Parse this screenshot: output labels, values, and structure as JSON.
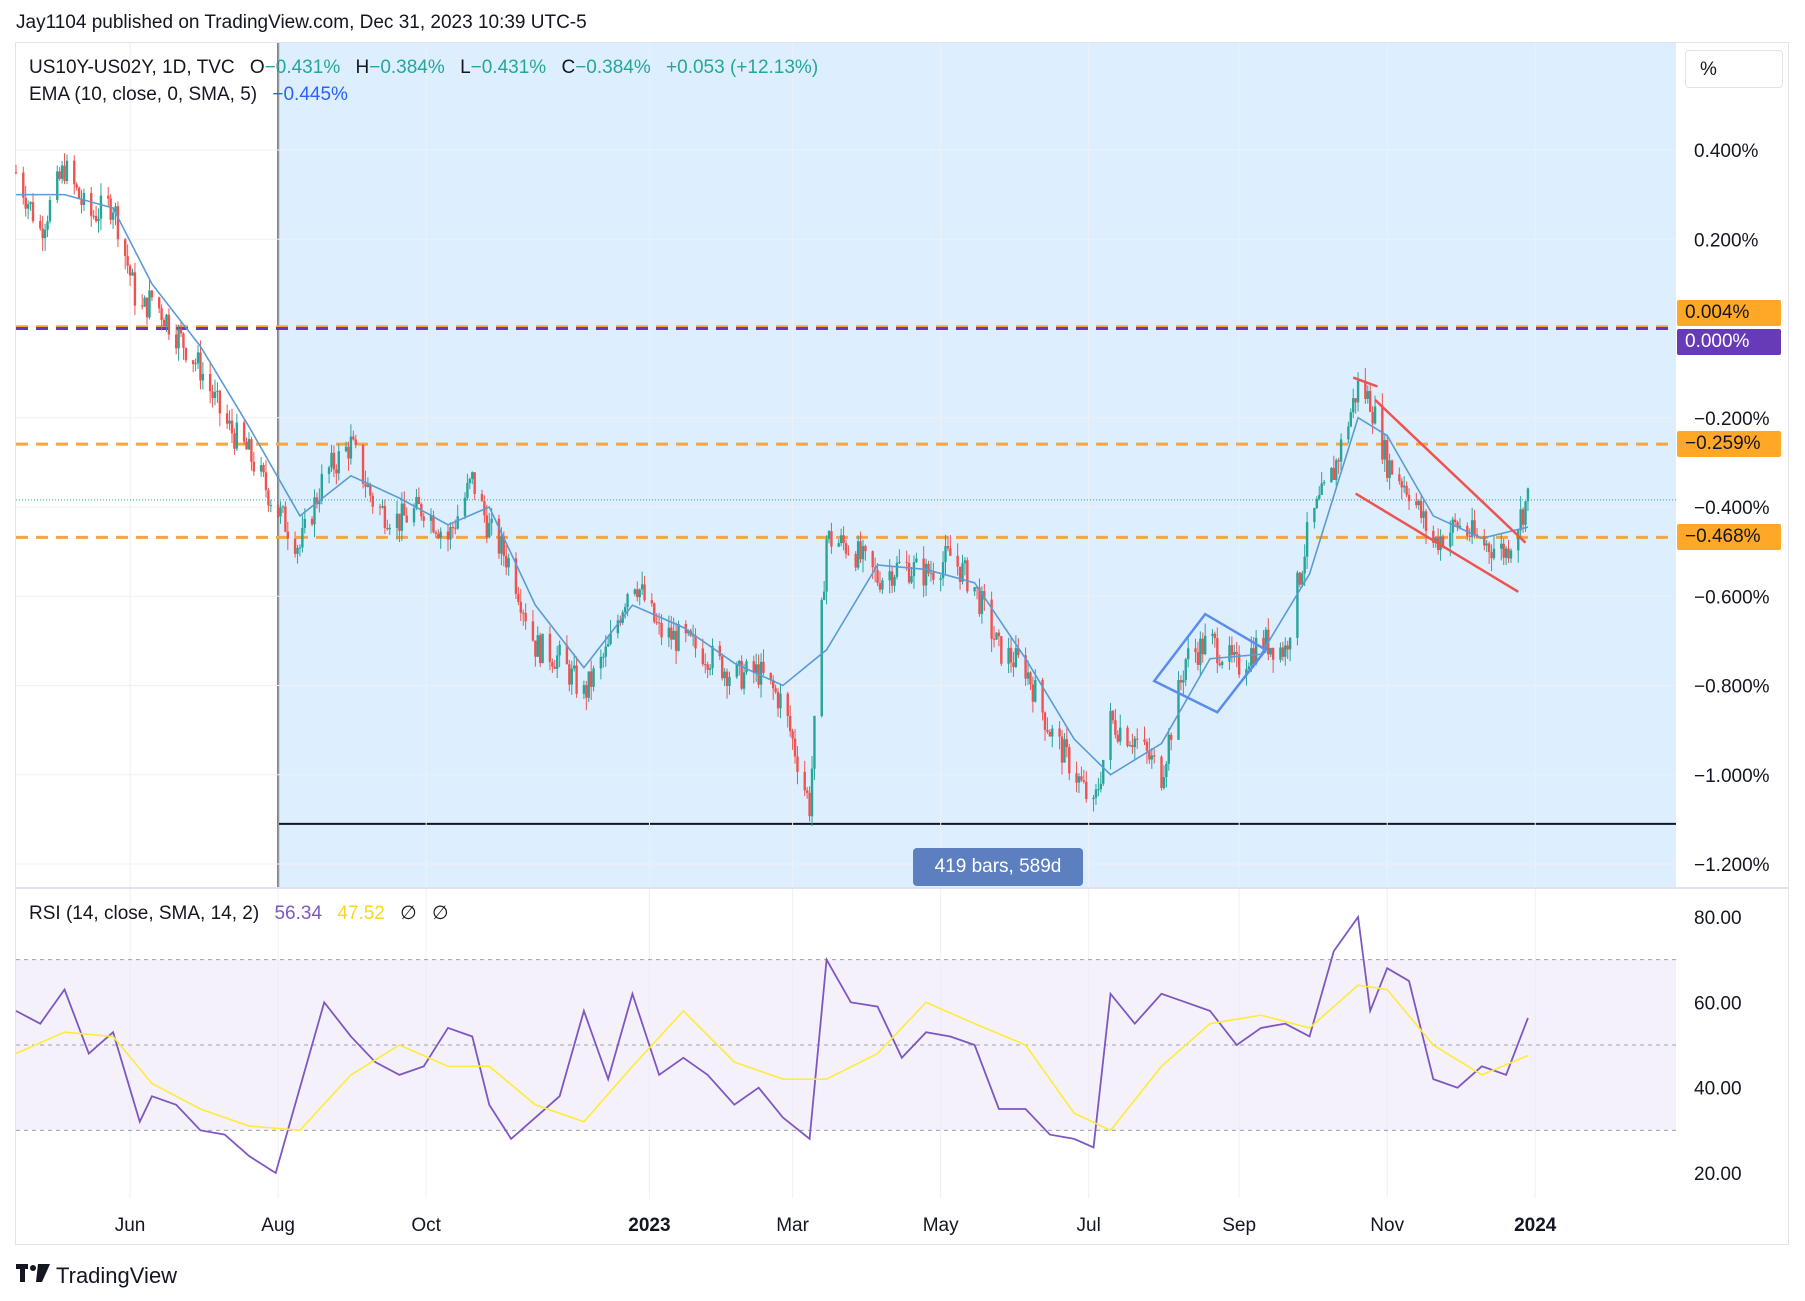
{
  "header": {
    "publisher": "Jay1104 published on TradingView.com, Dec 31, 2023 10:39 UTC-5"
  },
  "legend": {
    "symbol": "US10Y-US02Y, 1D, TVC",
    "o_label": "O",
    "o_value": "−0.431%",
    "h_label": "H",
    "h_value": "−0.384%",
    "l_label": "L",
    "l_value": "−0.431%",
    "c_label": "C",
    "c_value": "−0.384%",
    "change": "+0.053 (+12.13%)",
    "ema_label": "EMA (10, close, 0, SMA, 5)",
    "ema_value": "−0.445%",
    "rsi_label": "RSI (14, close, SMA, 14, 2)",
    "rsi_value": "56.34",
    "rsi_ma_value": "47.52",
    "rsi_extra1": "∅",
    "rsi_extra2": "∅"
  },
  "scale_button": "%",
  "range_badge": "419 bars, 589d",
  "price_tags": [
    {
      "label": "0.004%",
      "value": 0.004,
      "bg": "#ffa726",
      "fg": "#131722"
    },
    {
      "label": "0.000%",
      "value": 0.0,
      "bg": "#673ab7",
      "fg": "#ffffff"
    },
    {
      "label": "−0.259%",
      "value": -0.259,
      "bg": "#ffa726",
      "fg": "#131722"
    },
    {
      "label": "−0.468%",
      "value": -0.468,
      "bg": "#ffa726",
      "fg": "#131722"
    }
  ],
  "brand": "TradingView",
  "colors": {
    "up": "#26a69a",
    "down": "#ef5350",
    "ema": "#5b9bd5",
    "rsi": "#7e57c2",
    "rsi_ma": "#ffeb3b",
    "range_fill": "#ddeeff",
    "hline_orange": "#f7a541",
    "hline_purple": "#673ab7",
    "pattern_blue": "#5b8def",
    "pattern_red": "#ef5350"
  },
  "chart_data": [
    {
      "type": "candlestick",
      "title": "US10Y-US02Y, 1D, TVC",
      "ylim": [
        -1.25,
        0.55
      ],
      "y_ticks": [
        "0.400%",
        "0.200%",
        "−0.200%",
        "−0.400%",
        "−0.600%",
        "−0.800%",
        "−1.000%",
        "−1.200%"
      ],
      "y_tick_values": [
        0.4,
        0.2,
        -0.2,
        -0.4,
        -0.6,
        -0.8,
        -1.0,
        -1.2
      ],
      "x_ticks": [
        "Jun",
        "Aug",
        "Oct",
        "2023",
        "Mar",
        "May",
        "Jul",
        "Sep",
        "Nov",
        "2024"
      ],
      "x_tick_dates": [
        "2022-06-01",
        "2022-08-01",
        "2022-10-01",
        "2023-01-01",
        "2023-03-01",
        "2023-05-01",
        "2023-07-01",
        "2023-09-01",
        "2023-11-01",
        "2024-01-01"
      ],
      "x_range": [
        "2022-04-15",
        "2024-02-28"
      ],
      "date_range_highlight": [
        "2022-08-01",
        "2023-12-29"
      ],
      "horizontal_lines": [
        {
          "value": 0.004,
          "style": "dashed",
          "color": "#f7a541"
        },
        {
          "value": 0.0,
          "style": "dashed",
          "color": "#673ab7"
        },
        {
          "value": -0.259,
          "style": "dashed",
          "color": "#f7a541"
        },
        {
          "value": -0.468,
          "style": "dashed",
          "color": "#f7a541"
        }
      ],
      "close_series": {
        "dates": [
          "2022-04-15",
          "2022-04-25",
          "2022-05-05",
          "2022-05-15",
          "2022-05-25",
          "2022-06-05",
          "2022-06-10",
          "2022-06-20",
          "2022-06-30",
          "2022-07-10",
          "2022-07-20",
          "2022-07-31",
          "2022-08-10",
          "2022-08-20",
          "2022-08-31",
          "2022-09-10",
          "2022-09-20",
          "2022-09-30",
          "2022-10-10",
          "2022-10-20",
          "2022-10-27",
          "2022-11-05",
          "2022-11-15",
          "2022-11-25",
          "2022-12-05",
          "2022-12-15",
          "2022-12-25",
          "2023-01-05",
          "2023-01-15",
          "2023-01-25",
          "2023-02-05",
          "2023-02-15",
          "2023-02-25",
          "2023-03-08",
          "2023-03-15",
          "2023-03-25",
          "2023-04-05",
          "2023-04-15",
          "2023-04-25",
          "2023-05-05",
          "2023-05-15",
          "2023-05-25",
          "2023-06-05",
          "2023-06-15",
          "2023-06-25",
          "2023-07-03",
          "2023-07-10",
          "2023-07-20",
          "2023-07-31",
          "2023-08-10",
          "2023-08-20",
          "2023-08-31",
          "2023-09-10",
          "2023-09-20",
          "2023-09-30",
          "2023-10-10",
          "2023-10-20",
          "2023-10-25",
          "2023-11-01",
          "2023-11-10",
          "2023-11-20",
          "2023-11-30",
          "2023-12-10",
          "2023-12-20",
          "2023-12-29"
        ],
        "values": [
          0.35,
          0.22,
          0.36,
          0.25,
          0.28,
          0.03,
          0.07,
          -0.01,
          -0.09,
          -0.21,
          -0.28,
          -0.4,
          -0.49,
          -0.33,
          -0.26,
          -0.4,
          -0.43,
          -0.4,
          -0.47,
          -0.34,
          -0.45,
          -0.53,
          -0.71,
          -0.74,
          -0.82,
          -0.72,
          -0.55,
          -0.68,
          -0.7,
          -0.73,
          -0.78,
          -0.77,
          -0.84,
          -1.07,
          -0.47,
          -0.49,
          -0.56,
          -0.53,
          -0.55,
          -0.51,
          -0.58,
          -0.72,
          -0.76,
          -0.9,
          -0.99,
          -1.08,
          -0.88,
          -0.92,
          -1.0,
          -0.74,
          -0.7,
          -0.76,
          -0.7,
          -0.72,
          -0.44,
          -0.32,
          -0.13,
          -0.16,
          -0.3,
          -0.36,
          -0.48,
          -0.44,
          -0.48,
          -0.5,
          -0.38
        ]
      },
      "ema_series": {
        "name": "EMA (10, close, 0, SMA, 5)",
        "dates": [
          "2022-04-15",
          "2022-05-05",
          "2022-05-25",
          "2022-06-10",
          "2022-06-30",
          "2022-07-20",
          "2022-08-10",
          "2022-08-31",
          "2022-09-20",
          "2022-10-10",
          "2022-10-27",
          "2022-11-15",
          "2022-12-05",
          "2022-12-25",
          "2023-01-15",
          "2023-02-05",
          "2023-02-25",
          "2023-03-15",
          "2023-04-05",
          "2023-04-25",
          "2023-05-15",
          "2023-06-05",
          "2023-06-25",
          "2023-07-10",
          "2023-07-31",
          "2023-08-20",
          "2023-09-10",
          "2023-09-30",
          "2023-10-20",
          "2023-11-01",
          "2023-11-20",
          "2023-12-10",
          "2023-12-29"
        ],
        "values": [
          0.3,
          0.3,
          0.27,
          0.1,
          -0.04,
          -0.22,
          -0.42,
          -0.33,
          -0.38,
          -0.44,
          -0.4,
          -0.62,
          -0.76,
          -0.62,
          -0.67,
          -0.75,
          -0.8,
          -0.72,
          -0.53,
          -0.54,
          -0.57,
          -0.74,
          -0.92,
          -1.0,
          -0.93,
          -0.74,
          -0.73,
          -0.55,
          -0.2,
          -0.24,
          -0.42,
          -0.47,
          -0.445
        ]
      },
      "patterns": [
        {
          "type": "diamond",
          "points": [
            [
              "2023-07-28",
              -0.79
            ],
            [
              "2023-08-18",
              -0.64
            ],
            [
              "2023-09-12",
              -0.72
            ],
            [
              "2023-08-23",
              -0.86
            ]
          ],
          "color": "#5b8def"
        },
        {
          "type": "channel_line",
          "points": [
            [
              "2023-10-27",
              -0.16
            ],
            [
              "2023-12-28",
              -0.48
            ]
          ],
          "color": "#ef5350"
        },
        {
          "type": "channel_line",
          "points": [
            [
              "2023-10-19",
              -0.37
            ],
            [
              "2023-12-25",
              -0.59
            ]
          ],
          "color": "#ef5350"
        },
        {
          "type": "channel_line",
          "points": [
            [
              "2023-10-18",
              -0.11
            ],
            [
              "2023-10-28",
              -0.13
            ]
          ],
          "color": "#ef5350"
        }
      ]
    },
    {
      "type": "line",
      "title": "RSI (14, close, SMA, 14, 2)",
      "ylim": [
        15,
        85
      ],
      "y_ticks": [
        "80.00",
        "60.00",
        "40.00",
        "20.00"
      ],
      "y_tick_values": [
        80,
        60,
        40,
        20
      ],
      "bands": [
        70,
        50,
        30
      ],
      "series": [
        {
          "name": "RSI",
          "dates": [
            "2022-04-15",
            "2022-04-25",
            "2022-05-05",
            "2022-05-15",
            "2022-05-25",
            "2022-06-05",
            "2022-06-10",
            "2022-06-20",
            "2022-06-30",
            "2022-07-10",
            "2022-07-20",
            "2022-07-31",
            "2022-08-10",
            "2022-08-20",
            "2022-08-31",
            "2022-09-10",
            "2022-09-20",
            "2022-09-30",
            "2022-10-10",
            "2022-10-20",
            "2022-10-27",
            "2022-11-05",
            "2022-11-15",
            "2022-11-25",
            "2022-12-05",
            "2022-12-15",
            "2022-12-25",
            "2023-01-05",
            "2023-01-15",
            "2023-01-25",
            "2023-02-05",
            "2023-02-15",
            "2023-02-25",
            "2023-03-08",
            "2023-03-15",
            "2023-03-25",
            "2023-04-05",
            "2023-04-15",
            "2023-04-25",
            "2023-05-05",
            "2023-05-15",
            "2023-05-25",
            "2023-06-05",
            "2023-06-15",
            "2023-06-25",
            "2023-07-03",
            "2023-07-10",
            "2023-07-20",
            "2023-07-31",
            "2023-08-10",
            "2023-08-20",
            "2023-08-31",
            "2023-09-10",
            "2023-09-20",
            "2023-09-30",
            "2023-10-10",
            "2023-10-20",
            "2023-10-25",
            "2023-11-01",
            "2023-11-10",
            "2023-11-20",
            "2023-11-30",
            "2023-12-10",
            "2023-12-20",
            "2023-12-29"
          ],
          "values": [
            58,
            55,
            63,
            48,
            53,
            32,
            38,
            36,
            30,
            29,
            24,
            20,
            40,
            60,
            52,
            46,
            43,
            45,
            54,
            52,
            36,
            28,
            33,
            38,
            58,
            42,
            62,
            43,
            47,
            43,
            36,
            40,
            33,
            28,
            70,
            60,
            59,
            47,
            53,
            52,
            50,
            35,
            35,
            29,
            28,
            26,
            62,
            55,
            62,
            60,
            58,
            50,
            54,
            55,
            52,
            72,
            80,
            58,
            68,
            65,
            42,
            40,
            45,
            43,
            56.34
          ]
        },
        {
          "name": "RSI-based MA",
          "dates": [
            "2022-04-15",
            "2022-05-05",
            "2022-05-25",
            "2022-06-10",
            "2022-06-30",
            "2022-07-20",
            "2022-08-10",
            "2022-08-31",
            "2022-09-20",
            "2022-10-10",
            "2022-10-27",
            "2022-11-15",
            "2022-12-05",
            "2022-12-25",
            "2023-01-15",
            "2023-02-05",
            "2023-02-25",
            "2023-03-15",
            "2023-04-05",
            "2023-04-25",
            "2023-05-15",
            "2023-06-05",
            "2023-06-25",
            "2023-07-10",
            "2023-07-31",
            "2023-08-20",
            "2023-09-10",
            "2023-09-30",
            "2023-10-20",
            "2023-11-01",
            "2023-11-20",
            "2023-12-10",
            "2023-12-29"
          ],
          "values": [
            48,
            53,
            52,
            41,
            35,
            31,
            30,
            43,
            50,
            45,
            45,
            36,
            32,
            45,
            58,
            46,
            42,
            42,
            48,
            60,
            55,
            50,
            34,
            30,
            45,
            55,
            57,
            54,
            64,
            63,
            50,
            43,
            47.52
          ]
        }
      ]
    }
  ]
}
